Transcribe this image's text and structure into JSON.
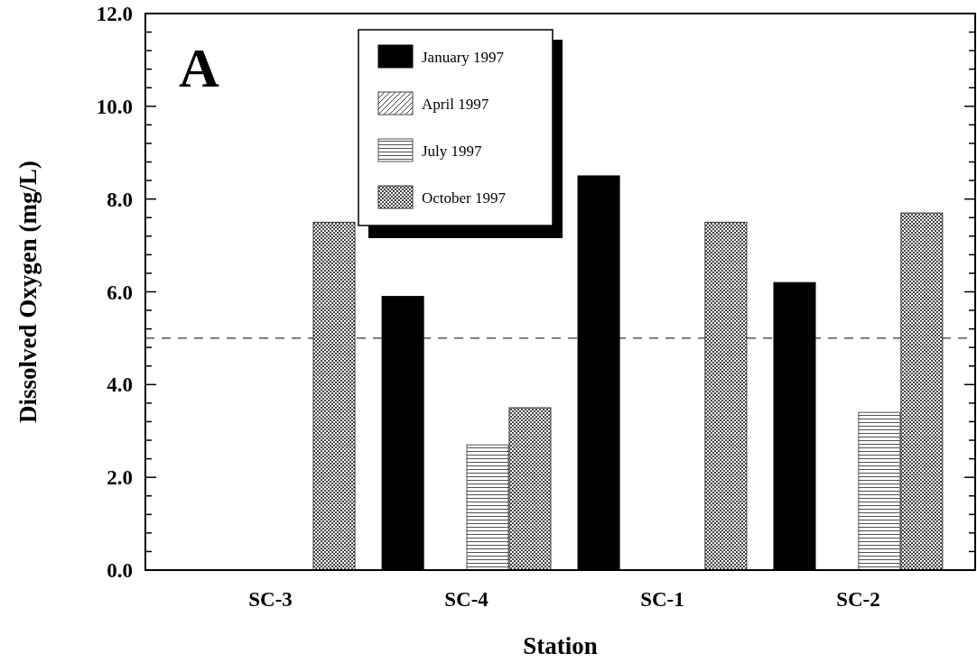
{
  "chart_data": {
    "type": "bar",
    "xlabel": "Station",
    "ylabel": "Dissolved Oxygen (mg/L)",
    "annotations": [
      "A"
    ],
    "categories": [
      "SC-3",
      "SC-4",
      "SC-1",
      "SC-2"
    ],
    "series": [
      {
        "name": "January 1997",
        "color": "#000000",
        "values": [
          null,
          5.9,
          8.5,
          6.2
        ]
      },
      {
        "name": "April 1997",
        "color": "#404040",
        "values": [
          null,
          null,
          null,
          null
        ]
      },
      {
        "name": "July 1997",
        "color": "#505050",
        "values": [
          null,
          2.7,
          null,
          3.4
        ]
      },
      {
        "name": "October 1997",
        "color": "#303030",
        "values": [
          7.5,
          3.5,
          7.5,
          7.7
        ]
      }
    ],
    "ylim": [
      0,
      12
    ],
    "yticks": [
      {
        "value": 0,
        "label": "0.0"
      },
      {
        "value": 0.4,
        "label": null
      },
      {
        "value": 0.8,
        "label": null
      },
      {
        "value": 1.2,
        "label": null
      },
      {
        "value": 1.6,
        "label": null
      },
      {
        "value": 2,
        "label": "2.0"
      },
      {
        "value": 2.4,
        "label": null
      },
      {
        "value": 2.8,
        "label": null
      },
      {
        "value": 3.2,
        "label": null
      },
      {
        "value": 3.6,
        "label": null
      },
      {
        "value": 4,
        "label": "4.0"
      },
      {
        "value": 4.4,
        "label": null
      },
      {
        "value": 4.8,
        "label": null
      },
      {
        "value": 5.2,
        "label": null
      },
      {
        "value": 5.6,
        "label": null
      },
      {
        "value": 6,
        "label": "6.0"
      },
      {
        "value": 6.4,
        "label": null
      },
      {
        "value": 6.8,
        "label": null
      },
      {
        "value": 7.2,
        "label": null
      },
      {
        "value": 7.6,
        "label": null
      },
      {
        "value": 8,
        "label": "8.0"
      },
      {
        "value": 8.4,
        "label": null
      },
      {
        "value": 8.8,
        "label": null
      },
      {
        "value": 9.2,
        "label": null
      },
      {
        "value": 9.6,
        "label": null
      },
      {
        "value": 10,
        "label": "10.0"
      },
      {
        "value": 10.4,
        "label": null
      },
      {
        "value": 10.8,
        "label": null
      },
      {
        "value": 11.2,
        "label": null
      },
      {
        "value": 11.6,
        "label": null
      },
      {
        "value": 12,
        "label": "12.0"
      }
    ],
    "ref_lines": [
      {
        "axis": "y",
        "value": 5,
        "label": null,
        "line_style": "dashed",
        "color": "#000000"
      }
    ],
    "legend": "top",
    "grid": false
  }
}
